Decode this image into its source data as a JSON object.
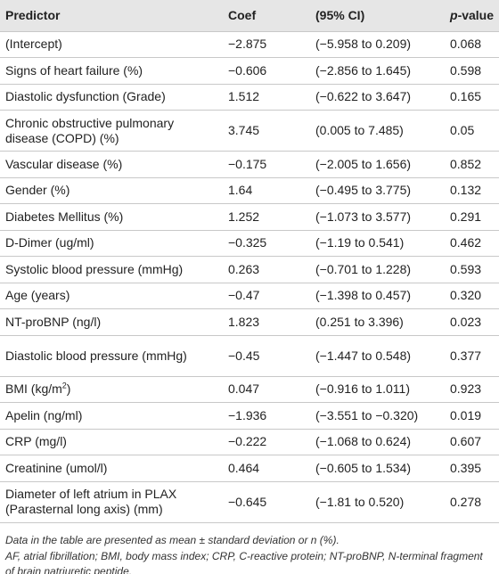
{
  "table": {
    "headers": {
      "predictor": "Predictor",
      "coef": "Coef",
      "ci": "(95% CI)",
      "pvalue_italic": "p",
      "pvalue_rest": "-value"
    },
    "rows": [
      {
        "predictor": "(Intercept)",
        "coef": "−2.875",
        "ci": "(−5.958 to 0.209)",
        "p": "0.068"
      },
      {
        "predictor": "Signs of heart failure (%)",
        "coef": "−0.606",
        "ci": "(−2.856 to 1.645)",
        "p": "0.598"
      },
      {
        "predictor": "Diastolic dysfunction (Grade)",
        "coef": "1.512",
        "ci": "(−0.622 to 3.647)",
        "p": "0.165"
      },
      {
        "predictor": "Chronic obstructive pulmonary disease (COPD) (%)",
        "coef": "3.745",
        "ci": "(0.005 to 7.485)",
        "p": "0.05"
      },
      {
        "predictor": "Vascular disease (%)",
        "coef": "−0.175",
        "ci": "(−2.005 to 1.656)",
        "p": "0.852"
      },
      {
        "predictor": "Gender (%)",
        "coef": "1.64",
        "ci": "(−0.495 to 3.775)",
        "p": "0.132"
      },
      {
        "predictor": "Diabetes Mellitus (%)",
        "coef": "1.252",
        "ci": "(−1.073 to 3.577)",
        "p": "0.291"
      },
      {
        "predictor": "D-Dimer (ug/ml)",
        "coef": "−0.325",
        "ci": "(−1.19 to 0.541)",
        "p": "0.462"
      },
      {
        "predictor": "Systolic blood pressure (mmHg)",
        "coef": "0.263",
        "ci": "(−0.701 to 1.228)",
        "p": "0.593"
      },
      {
        "predictor": "Age (years)",
        "coef": "−0.47",
        "ci": "(−1.398 to 0.457)",
        "p": "0.320"
      },
      {
        "predictor": "NT-proBNP (ng/l)",
        "coef": "1.823",
        "ci": "(0.251 to 3.396)",
        "p": "0.023"
      },
      {
        "predictor": "Diastolic blood pressure (mmHg)",
        "coef": "−0.45",
        "ci": "(−1.447 to 0.548)",
        "p": "0.377"
      },
      {
        "predictor": "BMI (kg/m",
        "predictor_sup": "2",
        "predictor_tail": ")",
        "coef": "0.047",
        "ci": "(−0.916 to 1.011)",
        "p": "0.923"
      },
      {
        "predictor": "Apelin (ng/ml)",
        "coef": "−1.936",
        "ci": "(−3.551 to −0.320)",
        "p": "0.019"
      },
      {
        "predictor": "CRP (mg/l)",
        "coef": "−0.222",
        "ci": "(−1.068 to 0.624)",
        "p": "0.607"
      },
      {
        "predictor": "Creatinine (umol/l)",
        "coef": "0.464",
        "ci": "(−0.605 to 1.534)",
        "p": "0.395"
      },
      {
        "predictor": "Diameter of left atrium in PLAX (Parasternal long axis) (mm)",
        "coef": "−0.645",
        "ci": "(−1.81 to 0.520)",
        "p": "0.278"
      }
    ]
  },
  "notes": {
    "line1": "Data in the table are presented as mean ± standard deviation or n (%).",
    "line2": "AF, atrial fibrillation; BMI, body mass index; CRP, C-reactive protein; NT-proBNP, N-terminal fragment of brain natriuretic peptide."
  }
}
